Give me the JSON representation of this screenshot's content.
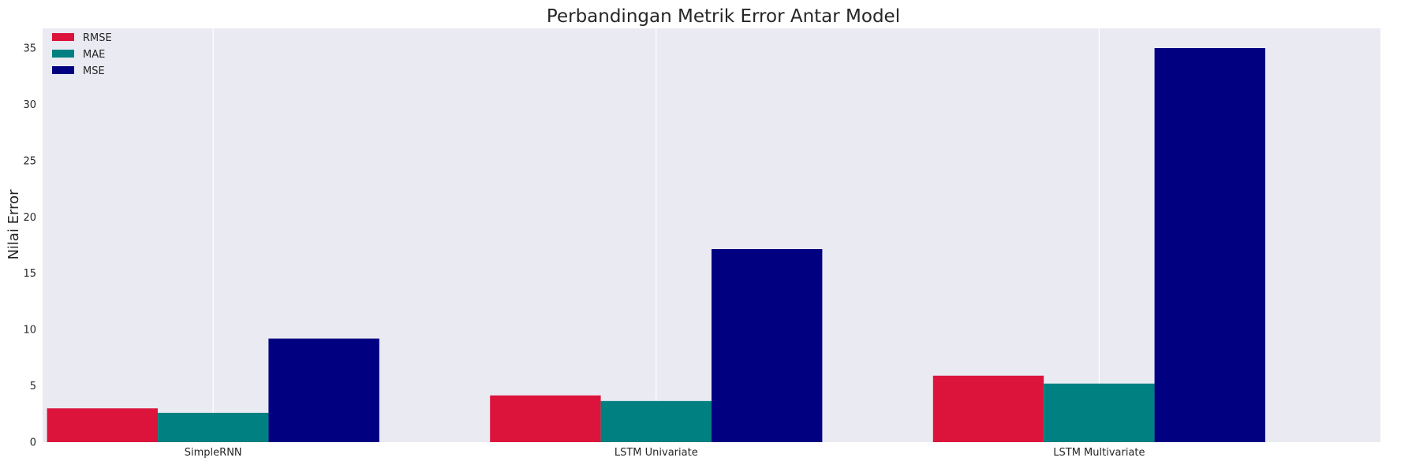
{
  "chart_data": {
    "type": "bar",
    "title": "Perbandingan Metrik Error Antar Model",
    "xlabel": "",
    "ylabel": "Nilai Error",
    "categories": [
      "SimpleRNN",
      "LSTM Univariate",
      "LSTM Multivariate"
    ],
    "series": [
      {
        "name": "RMSE",
        "color": "#DC143C",
        "values": [
          3.0,
          4.15,
          5.9
        ]
      },
      {
        "name": "MAE",
        "color": "#008080",
        "values": [
          2.6,
          3.65,
          5.2
        ]
      },
      {
        "name": "MSE",
        "color": "#000080",
        "values": [
          9.2,
          17.15,
          35.0
        ]
      }
    ],
    "ylim": [
      0,
      36.75
    ],
    "yticks": [
      0,
      5,
      10,
      15,
      20,
      25,
      30,
      35
    ],
    "grid": "x",
    "legend_position": "top-left",
    "background": "#EAEAF2"
  }
}
